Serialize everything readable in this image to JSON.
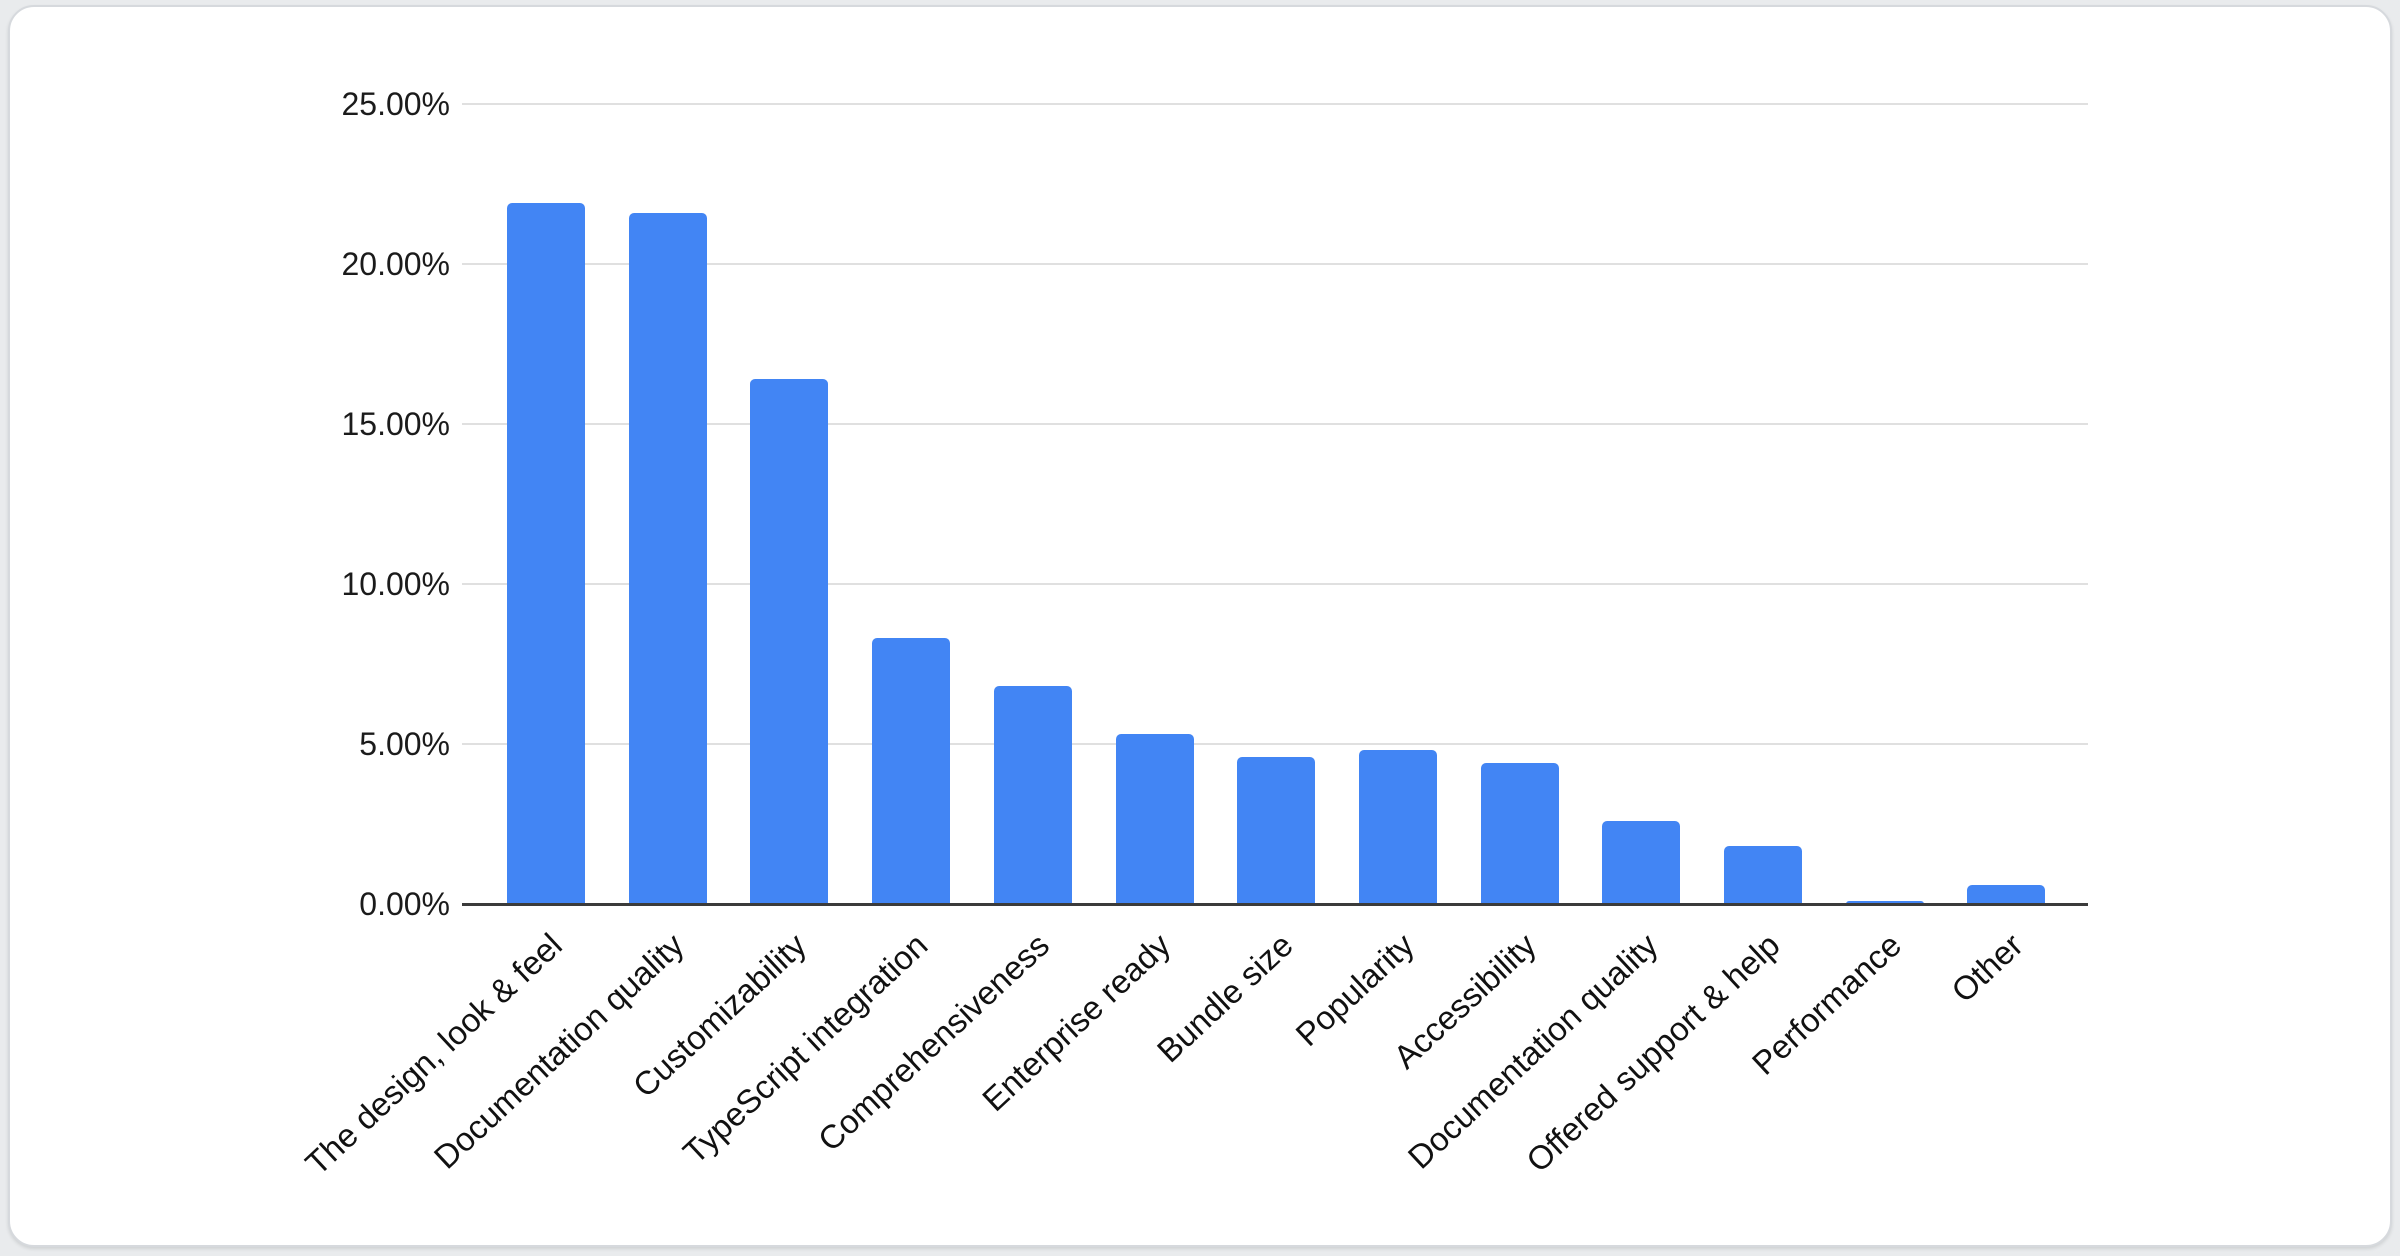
{
  "chart_data": {
    "type": "bar",
    "title": "",
    "xlabel": "",
    "ylabel": "",
    "categories": [
      "The design, look & feel",
      "Documentation quality",
      "Customizability",
      "TypeScript integration",
      "Comprehensiveness",
      "Enterprise ready",
      "Bundle size",
      "Popularity",
      "Accessibility",
      "Documentation quality",
      "Offered support & help",
      "Performance",
      "Other"
    ],
    "values": [
      21.9,
      21.6,
      16.4,
      8.3,
      6.8,
      5.3,
      4.6,
      4.8,
      4.4,
      2.6,
      1.8,
      0.1,
      0.6
    ],
    "value_unit": "%",
    "ylim": [
      0,
      25
    ],
    "ytick_step": 5,
    "yticks": [
      {
        "value": 0,
        "label": "0.00%"
      },
      {
        "value": 5,
        "label": "5.00%"
      },
      {
        "value": 10,
        "label": "10.00%"
      },
      {
        "value": 15,
        "label": "15.00%"
      },
      {
        "value": 20,
        "label": "20.00%"
      },
      {
        "value": 25,
        "label": "25.00%"
      }
    ],
    "grid": true,
    "legend_position": "none",
    "colors": {
      "bar": "#4285F4",
      "gridline": "#e0e0e0",
      "axis_line": "#3b3b3b",
      "tick_text": "#1b1b1b",
      "label_text": "#111111",
      "card_background": "#ffffff",
      "card_border": "#d6d9dd",
      "page_background": "#e9ebed"
    }
  }
}
